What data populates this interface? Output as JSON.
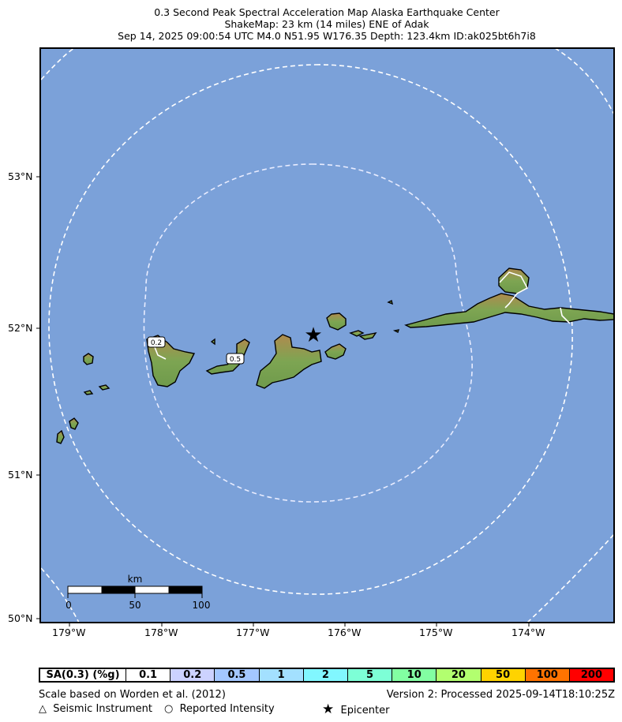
{
  "header": {
    "title_line1": "0.3 Second Peak Spectral Acceleration Map Alaska Earthquake Center",
    "title_line2": "ShakeMap: 23 km (14 miles) ENE of Adak",
    "title_line3": "Sep 14, 2025 09:00:54 UTC M4.0 N51.95 W176.35 Depth: 123.4km ID:ak025bt6h7i8"
  },
  "map": {
    "lat_labels": [
      "53°N",
      "52°N",
      "51°N",
      "50°N"
    ],
    "lon_labels": [
      "179°W",
      "178°W",
      "177°W",
      "176°W",
      "175°W",
      "174°W"
    ],
    "ocean_color": "#7ba1d9",
    "contour_labels": [
      "0.2",
      "0.5"
    ],
    "epicenter_symbol": "★",
    "scale_bar": {
      "unit": "km",
      "ticks": [
        "0",
        "50",
        "100"
      ]
    }
  },
  "legend": {
    "header": "SA(0.3) (%g)",
    "values": [
      "0.1",
      "0.2",
      "0.5",
      "1",
      "2",
      "5",
      "10",
      "20",
      "50",
      "100",
      "200"
    ],
    "colors": [
      "#ffffff",
      "#ccd2ff",
      "#a3c7ff",
      "#a3e0ff",
      "#81f7ff",
      "#7dffd6",
      "#82ffa2",
      "#b2ff6f",
      "#ffd300",
      "#ff7300",
      "#ff0000"
    ]
  },
  "footer": {
    "scale_note": "Scale based on Worden et al. (2012)",
    "version": "Version 2: Processed 2025-09-14T18:10:25Z",
    "seismic_symbol": "△",
    "seismic_label": "Seismic Instrument",
    "reported_symbol": "○",
    "reported_label": "Reported Intensity",
    "epicenter_symbol": "★",
    "epicenter_label": "Epicenter"
  }
}
